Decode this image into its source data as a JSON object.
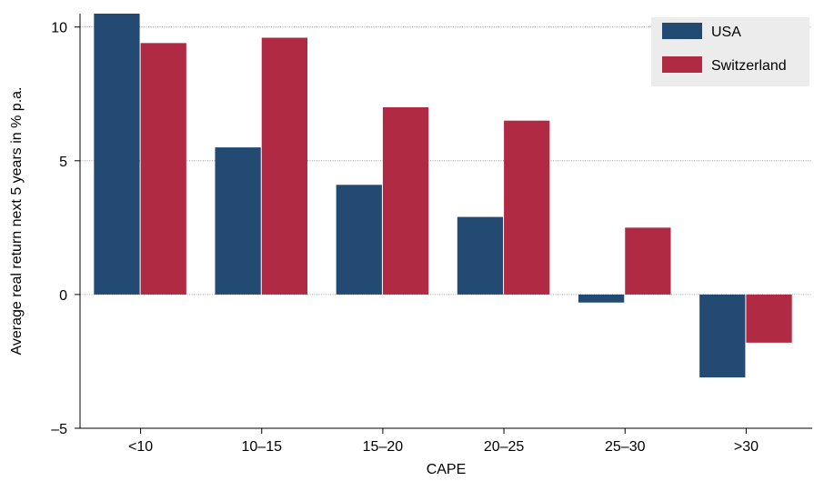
{
  "chart_data": {
    "type": "bar",
    "title": "",
    "xlabel": "CAPE",
    "ylabel": "Average real return next 5 years in % p.a.",
    "categories": [
      "<10",
      "10–15",
      "15–20",
      "20–25",
      "25–30",
      ">30"
    ],
    "series": [
      {
        "name": "USA",
        "color": "#234a73",
        "values": [
          10.5,
          5.5,
          4.1,
          2.9,
          -0.3,
          -3.1
        ]
      },
      {
        "name": "Switzerland",
        "color": "#b12a44",
        "values": [
          9.4,
          9.6,
          7.0,
          6.5,
          2.5,
          -1.8
        ]
      }
    ],
    "ylim": [
      -5,
      10.5
    ],
    "yticks": [
      -5,
      0,
      5,
      10
    ],
    "ytick_labels": [
      "–5",
      "0",
      "5",
      "10"
    ],
    "grid": true,
    "legend_position": "top-right"
  }
}
